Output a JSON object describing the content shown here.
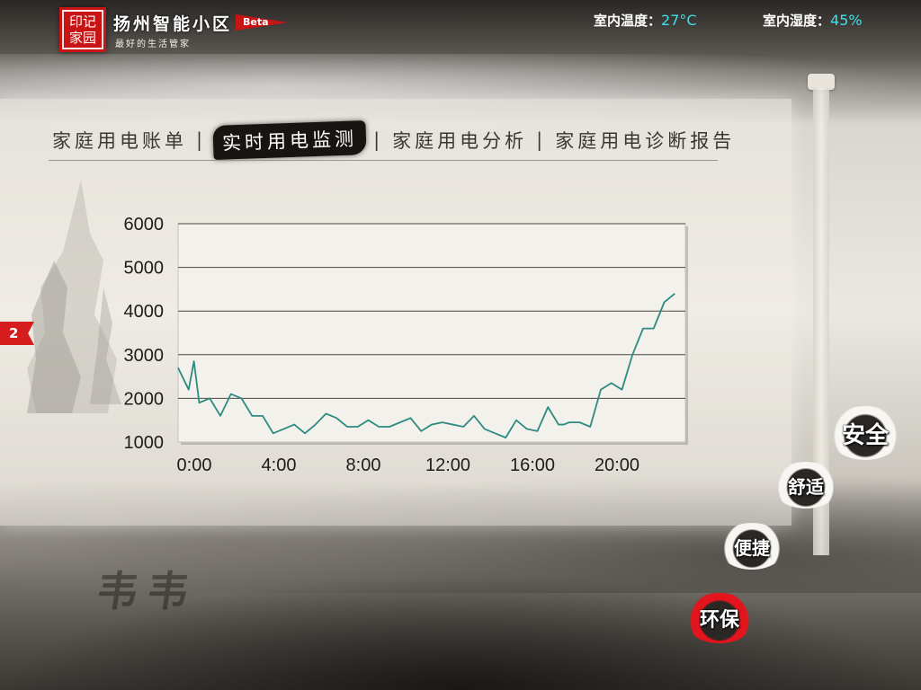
{
  "header": {
    "logo_text": "印记家园",
    "app_name": "扬州智能小区",
    "beta_label": "Beta",
    "slogan": "最好的生活管家",
    "temperature_label": "室内温度：",
    "temperature_value": "27°C",
    "humidity_label": "室内湿度：",
    "humidity_value": "45%"
  },
  "tabs": {
    "items": [
      {
        "label": "家庭用电账单",
        "active": false
      },
      {
        "label": "实时用电监测",
        "active": true
      },
      {
        "label": "家庭用电分析",
        "active": false
      },
      {
        "label": "家庭用电诊断报告",
        "active": false
      }
    ],
    "separator": "|"
  },
  "side_flag": {
    "label": "2"
  },
  "nav": {
    "safety": "安全",
    "comfort": "舒适",
    "convenience": "便捷",
    "eco": "环保"
  },
  "background_calligraphy": "韦韦",
  "chart_data": {
    "type": "line",
    "title": "",
    "xlabel": "",
    "ylabel": "",
    "x_tick_labels": [
      "0:00",
      "4:00",
      "8:00",
      "12:00",
      "16:00",
      "20:00"
    ],
    "y_tick_labels": [
      "1000",
      "2000",
      "3000",
      "4000",
      "5000",
      "6000"
    ],
    "xlim": [
      0,
      24
    ],
    "ylim": [
      1000,
      6000
    ],
    "grid": true,
    "line_color": "#2e8b80",
    "series": [
      {
        "x": [
          0,
          0.5,
          0.75,
          1,
          1.5,
          2,
          2.5,
          3,
          3.5,
          4,
          4.5,
          5,
          5.5,
          6,
          6.5,
          7,
          7.5,
          8,
          8.5,
          9,
          9.5,
          10,
          10.5,
          11,
          11.5,
          12,
          12.5,
          13,
          13.5,
          14,
          14.5,
          15,
          15.5,
          16,
          16.5,
          17,
          17.5,
          18,
          18.25,
          18.5,
          19,
          19.5,
          20,
          20.5,
          21,
          21.25,
          21.5,
          22,
          22.5,
          23,
          23.5
        ],
        "y": [
          2700,
          2200,
          2850,
          1900,
          2000,
          1600,
          2100,
          2000,
          1600,
          1600,
          1200,
          1300,
          1400,
          1200,
          1400,
          1650,
          1550,
          1350,
          1350,
          1500,
          1350,
          1350,
          1450,
          1550,
          1250,
          1400,
          1450,
          1400,
          1350,
          1600,
          1300,
          1200,
          1100,
          1500,
          1300,
          1250,
          1800,
          1400,
          1400,
          1450,
          1450,
          1350,
          2200,
          2350,
          2200,
          2600,
          3000,
          3600,
          3600,
          4200,
          4400
        ]
      }
    ]
  }
}
